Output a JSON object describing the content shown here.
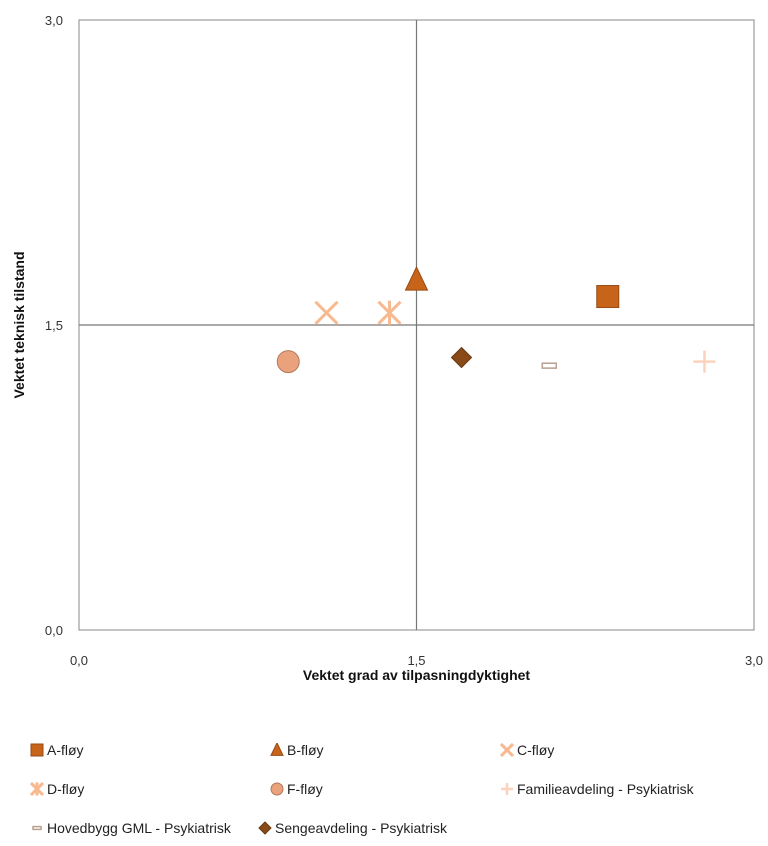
{
  "chart_data": {
    "type": "scatter",
    "title": "",
    "xlabel": "Vektet grad av tilpasningdyktighet",
    "ylabel": "Vektet teknisk tilstand",
    "xlim": [
      0,
      3
    ],
    "ylim": [
      0,
      3
    ],
    "x_ticks": [
      "0,0",
      "1,5",
      "3,0"
    ],
    "y_ticks": [
      "0,0",
      "1,5",
      "3,0"
    ],
    "quadrant_lines": {
      "x": 1.5,
      "y": 1.5
    },
    "legend_position": "bottom",
    "series": [
      {
        "name": "A-fløy",
        "marker": "square",
        "color": "#c8641a",
        "x": 2.35,
        "y": 1.64
      },
      {
        "name": "B-fløy",
        "marker": "triangle",
        "color": "#c8641a",
        "x": 1.5,
        "y": 1.72
      },
      {
        "name": "C-fløy",
        "marker": "x",
        "color": "#f7b98f",
        "x": 1.1,
        "y": 1.56
      },
      {
        "name": "D-fløy",
        "marker": "star",
        "color": "#f7b98f",
        "x": 1.38,
        "y": 1.56
      },
      {
        "name": "F-fløy",
        "marker": "circle",
        "color": "#eaa27c",
        "x": 0.93,
        "y": 1.32
      },
      {
        "name": "Familieavdeling - Psykiatrisk",
        "marker": "plus",
        "color": "#fbd2bb",
        "x": 2.78,
        "y": 1.32
      },
      {
        "name": "Hovedbygg GML - Psykiatrisk",
        "marker": "dash",
        "color": "#b9a090",
        "x": 2.09,
        "y": 1.3
      },
      {
        "name": "Sengeavdeling - Psykiatrisk",
        "marker": "diamond",
        "color": "#8a4a17",
        "x": 1.7,
        "y": 1.34
      }
    ]
  }
}
